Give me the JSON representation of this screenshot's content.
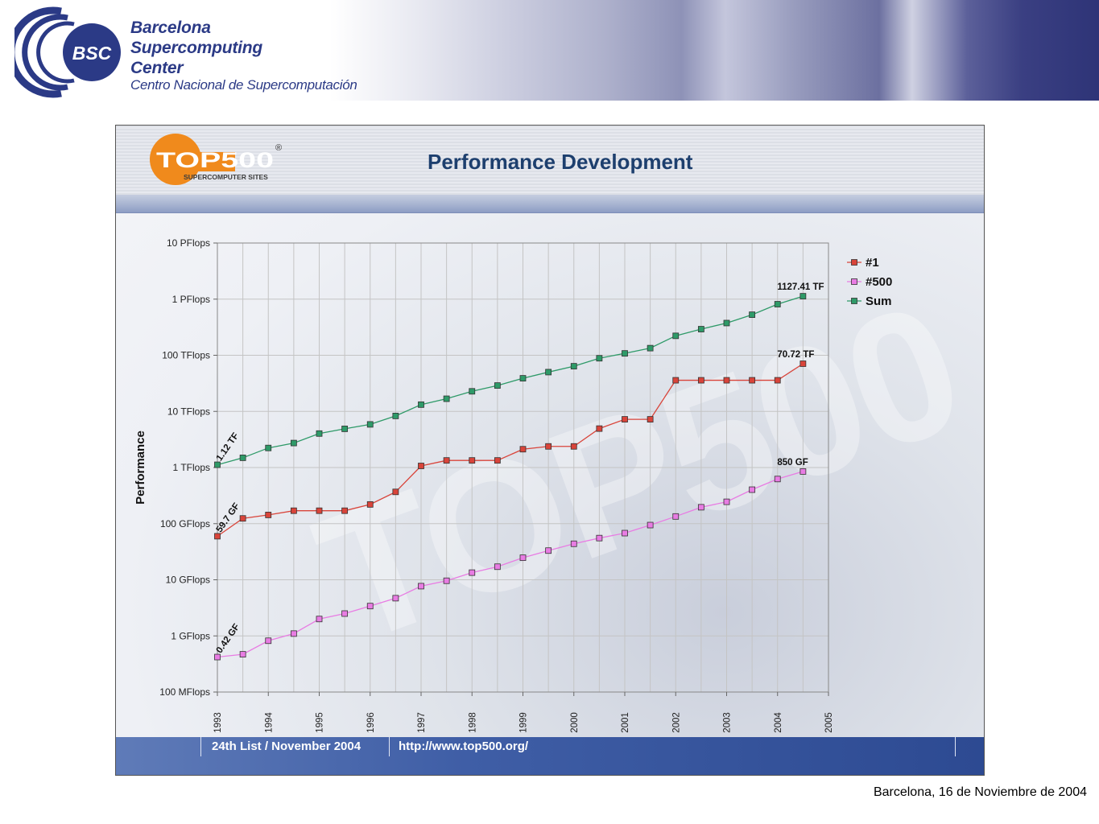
{
  "header": {
    "logo_text": "BSC",
    "title_lines": [
      "Barcelona",
      "Supercomputing",
      "Center"
    ],
    "subtitle": "Centro Nacional de Supercomputación"
  },
  "slide": {
    "logo": {
      "brand": "TOP500",
      "tagline": "SUPERCOMPUTER SITES",
      "registered": "®"
    },
    "title": "Performance Development",
    "footer_left": "24th List / November 2004",
    "footer_right": "http://www.top500.org/",
    "watermark": "TOP500"
  },
  "caption": "Barcelona, 16 de Noviembre de 2004",
  "colors": {
    "bsc_blue": "#2b3a86",
    "series_1": "#d9443a",
    "series_500": "#e87ce3",
    "series_sum": "#2e9a68",
    "footer_blue": "#3f5ea6"
  },
  "chart_data": {
    "type": "line",
    "title": "",
    "xlabel": "",
    "ylabel": "Performance",
    "y_scale": "log",
    "y_ticks": [
      "10 PFlops",
      "1 PFlops",
      "100 TFlops",
      "10 TFlops",
      "1 TFlops",
      "100 GFlops",
      "10 GFlops",
      "1 GFlops",
      "100 MFlops"
    ],
    "y_tick_values_gflops": [
      10000000,
      1000000,
      100000,
      10000,
      1000,
      100,
      10,
      1,
      0.1
    ],
    "x_ticks": [
      "1993",
      "1994",
      "1995",
      "1996",
      "1997",
      "1998",
      "1999",
      "2000",
      "2001",
      "2002",
      "2003",
      "2004",
      "2005"
    ],
    "xlim": [
      1993,
      2005
    ],
    "ylim_gflops": [
      0.1,
      10000000
    ],
    "grid": true,
    "legend_position": "right",
    "x": [
      1993,
      1993.5,
      1994,
      1994.5,
      1995,
      1995.5,
      1996,
      1996.5,
      1997,
      1997.5,
      1998,
      1998.5,
      1999,
      1999.5,
      2000,
      2000.5,
      2001,
      2001.5,
      2002,
      2002.5,
      2003,
      2003.5,
      2004,
      2004.5
    ],
    "series": [
      {
        "name": "#1",
        "color": "#d9443a",
        "values": [
          59.7,
          124,
          143,
          170,
          170,
          170,
          220,
          368,
          1068,
          1338,
          1338,
          1338,
          2121,
          2379,
          2379,
          4938,
          7226,
          7226,
          35860,
          35860,
          35860,
          35860,
          35860,
          70720
        ]
      },
      {
        "name": "#500",
        "color": "#e87ce3",
        "values": [
          0.42,
          0.47,
          0.82,
          1.1,
          2.0,
          2.5,
          3.4,
          4.7,
          7.7,
          9.6,
          13.4,
          17.1,
          24.7,
          33.1,
          43.8,
          55.3,
          67.8,
          94.3,
          134.3,
          196,
          245,
          403,
          624,
          850
        ]
      },
      {
        "name": "Sum",
        "color": "#2e9a68",
        "values": [
          1120,
          1490,
          2230,
          2730,
          4030,
          4890,
          5870,
          8300,
          13200,
          16800,
          22800,
          28900,
          38900,
          50100,
          63800,
          88500,
          108000,
          134000,
          222000,
          292000,
          375000,
          528000,
          813000,
          1127410
        ]
      }
    ],
    "annotations": [
      {
        "text": "1127.41 TF",
        "series": "Sum",
        "at": "end"
      },
      {
        "text": "70.72 TF",
        "series": "#1",
        "at": "end"
      },
      {
        "text": "850 GF",
        "series": "#500",
        "at": "end"
      },
      {
        "text": "1.12 TF",
        "series": "Sum",
        "at": "start"
      },
      {
        "text": "59.7 GF",
        "series": "#1",
        "at": "start"
      },
      {
        "text": "0.42 GF",
        "series": "#500",
        "at": "start"
      }
    ]
  }
}
